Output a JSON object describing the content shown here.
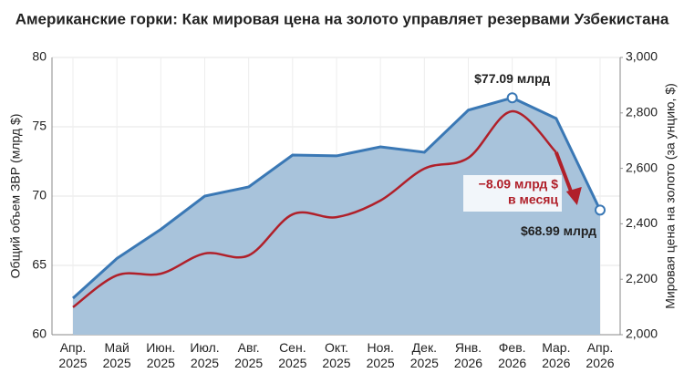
{
  "chart_data": {
    "type": "line",
    "title": "Американские горки: Как мировая цена на золото управляет резервами Узбекистана",
    "y_label": "Общий объем ЗВР (млрд $)",
    "y2_label": "Мировая цена на золото (за унцию, $)",
    "categories": [
      "Апр. 2025",
      "Май 2025",
      "Июн. 2025",
      "Июл. 2025",
      "Авг. 2025",
      "Сен. 2025",
      "Окт. 2025",
      "Ноя. 2025",
      "Дек. 2025",
      "Янв. 2026",
      "Фев. 2026",
      "Мар. 2026",
      "Апр. 2026"
    ],
    "series": [
      {
        "color": "#3a78b5",
        "area_color": "#a8c3db",
        "values": [
          62.63,
          65.5,
          67.6,
          70.0,
          70.66,
          72.96,
          72.9,
          73.55,
          73.16,
          76.2,
          77.09,
          75.6,
          68.99
        ],
        "value_labels": [
          null,
          null,
          null,
          null,
          null,
          null,
          null,
          null,
          null,
          null,
          "$77.09 млрд",
          null,
          "$68.99 млрд"
        ]
      },
      {
        "color": "#b0202a",
        "axis": "y2",
        "values": [
          2099,
          2214,
          2220,
          2293,
          2286,
          2434,
          2424,
          2484,
          2599,
          2638,
          2806,
          2658,
          null
        ]
      }
    ],
    "annotation": [
      "−8.09 млрд $",
      "в месяц"
    ],
    "ylim": [
      60,
      80
    ],
    "yticks": [
      60,
      65,
      70,
      75,
      80
    ],
    "y2lim": [
      2000,
      3000
    ],
    "y2ticks": [
      {
        "value": 2000,
        "label": "2,000"
      },
      {
        "value": 2200,
        "label": "2,200"
      },
      {
        "value": 2400,
        "label": "2,400"
      },
      {
        "value": 2600,
        "label": "2,600"
      },
      {
        "value": 2800,
        "label": "2,800"
      },
      {
        "value": 3000,
        "label": "3,000"
      }
    ],
    "grid": true
  }
}
